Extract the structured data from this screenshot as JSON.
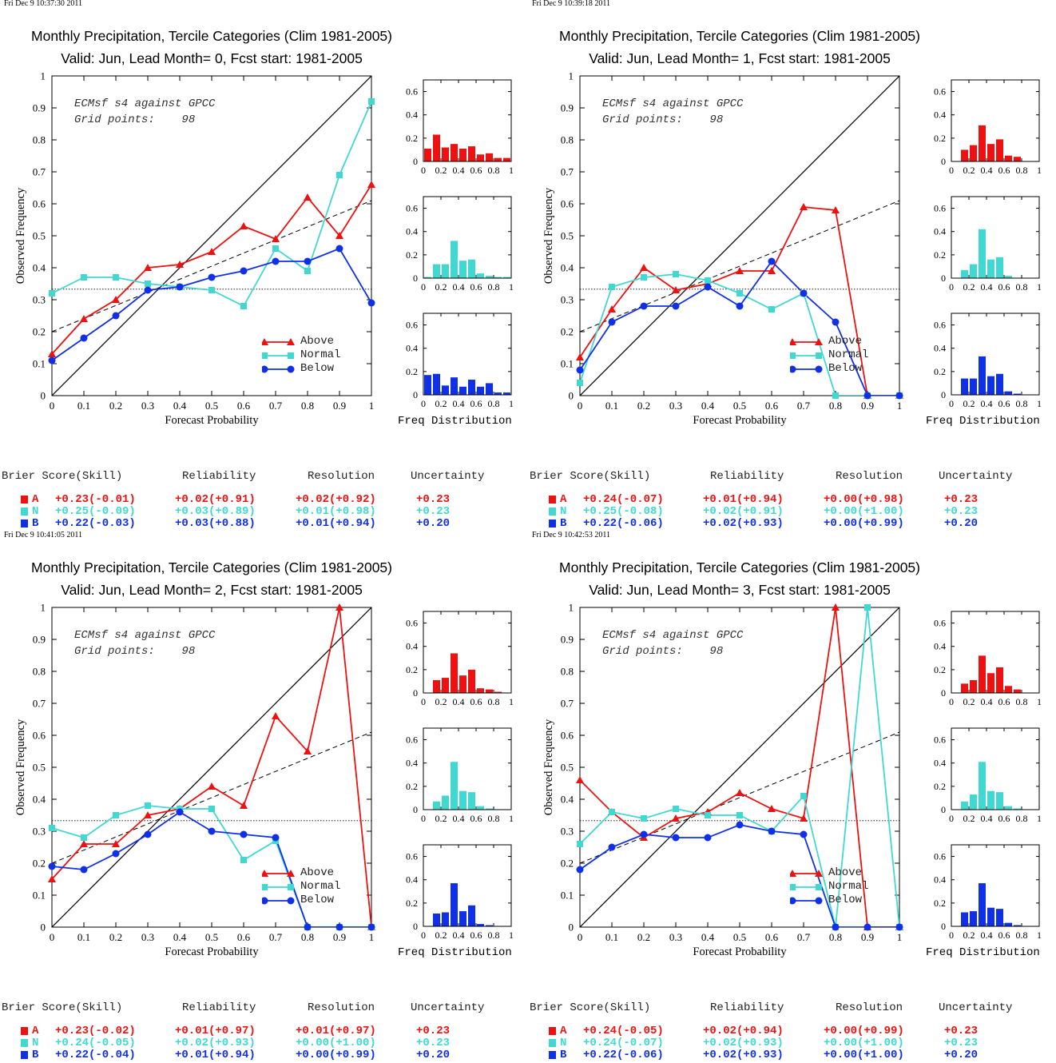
{
  "colors": {
    "above": "#ee1111",
    "normal": "#40d8d0",
    "below": "#1030e8"
  },
  "panels": [
    {
      "timestamp": "Fri Dec  9 10:37:30 2011",
      "title_line1": "Monthly Precipitation, Tercile Categories (Clim 1981-2005)",
      "title_line2": "Valid: Jun, Lead Month= 0, Fcst start: 1981-2005",
      "note_line1": "ECMsf s4 against GPCC",
      "note_line2": "Grid points:    98",
      "freq_label": "Freq Distribution",
      "score_headers": {
        "brier": "Brier Score(Skill)",
        "reliability": "Reliability",
        "resolution": "Resolution",
        "uncertainty": "Uncertainty"
      },
      "scores": [
        {
          "cat": "A",
          "brier": "+0.23(-0.01)",
          "reliability": "+0.02(+0.91)",
          "resolution": "+0.02(+0.92)",
          "uncertainty": "+0.23"
        },
        {
          "cat": "N",
          "brier": "+0.25(-0.09)",
          "reliability": "+0.03(+0.89)",
          "resolution": "+0.01(+0.98)",
          "uncertainty": "+0.23"
        },
        {
          "cat": "B",
          "brier": "+0.22(-0.03)",
          "reliability": "+0.03(+0.88)",
          "resolution": "+0.01(+0.94)",
          "uncertainty": "+0.20"
        }
      ]
    },
    {
      "timestamp": "Fri Dec  9 10:39:18 2011",
      "title_line1": "Monthly Precipitation, Tercile Categories (Clim 1981-2005)",
      "title_line2": "Valid: Jun, Lead Month= 1, Fcst start: 1981-2005",
      "note_line1": "ECMsf s4 against GPCC",
      "note_line2": "Grid points:    98",
      "freq_label": "Freq Distribution",
      "score_headers": {
        "brier": "Brier Score(Skill)",
        "reliability": "Reliability",
        "resolution": "Resolution",
        "uncertainty": "Uncertainty"
      },
      "scores": [
        {
          "cat": "A",
          "brier": "+0.24(-0.07)",
          "reliability": "+0.01(+0.94)",
          "resolution": "+0.00(+0.98)",
          "uncertainty": "+0.23"
        },
        {
          "cat": "N",
          "brier": "+0.25(-0.08)",
          "reliability": "+0.02(+0.91)",
          "resolution": "+0.00(+1.00)",
          "uncertainty": "+0.23"
        },
        {
          "cat": "B",
          "brier": "+0.22(-0.06)",
          "reliability": "+0.02(+0.93)",
          "resolution": "+0.00(+0.99)",
          "uncertainty": "+0.20"
        }
      ]
    },
    {
      "timestamp": "Fri Dec  9 10:41:05 2011",
      "title_line1": "Monthly Precipitation, Tercile Categories (Clim 1981-2005)",
      "title_line2": "Valid: Jun, Lead Month= 2, Fcst start: 1981-2005",
      "note_line1": "ECMsf s4 against GPCC",
      "note_line2": "Grid points:    98",
      "freq_label": "Freq Distribution",
      "score_headers": {
        "brier": "Brier Score(Skill)",
        "reliability": "Reliability",
        "resolution": "Resolution",
        "uncertainty": "Uncertainty"
      },
      "scores": [
        {
          "cat": "A",
          "brier": "+0.23(-0.02)",
          "reliability": "+0.01(+0.97)",
          "resolution": "+0.01(+0.97)",
          "uncertainty": "+0.23"
        },
        {
          "cat": "N",
          "brier": "+0.24(-0.05)",
          "reliability": "+0.02(+0.93)",
          "resolution": "+0.00(+1.00)",
          "uncertainty": "+0.23"
        },
        {
          "cat": "B",
          "brier": "+0.22(-0.04)",
          "reliability": "+0.01(+0.94)",
          "resolution": "+0.00(+0.99)",
          "uncertainty": "+0.20"
        }
      ]
    },
    {
      "timestamp": "Fri Dec  9 10:42:53 2011",
      "title_line1": "Monthly Precipitation, Tercile Categories (Clim 1981-2005)",
      "title_line2": "Valid: Jun, Lead Month= 3, Fcst start: 1981-2005",
      "note_line1": "ECMsf s4 against GPCC",
      "note_line2": "Grid points:    98",
      "freq_label": "Freq Distribution",
      "score_headers": {
        "brier": "Brier Score(Skill)",
        "reliability": "Reliability",
        "resolution": "Resolution",
        "uncertainty": "Uncertainty"
      },
      "scores": [
        {
          "cat": "A",
          "brier": "+0.24(-0.05)",
          "reliability": "+0.02(+0.94)",
          "resolution": "+0.00(+0.99)",
          "uncertainty": "+0.23"
        },
        {
          "cat": "N",
          "brier": "+0.24(-0.07)",
          "reliability": "+0.02(+0.93)",
          "resolution": "+0.00(+1.00)",
          "uncertainty": "+0.23"
        },
        {
          "cat": "B",
          "brier": "+0.22(-0.06)",
          "reliability": "+0.02(+0.93)",
          "resolution": "+0.00(+1.00)",
          "uncertainty": "+0.20"
        }
      ]
    }
  ],
  "chart_data": [
    {
      "type": "line",
      "xlabel": "Forecast Probability",
      "ylabel": "Observed Frequency",
      "xlim": [
        0,
        1
      ],
      "ylim": [
        0,
        1
      ],
      "xticks": [
        "0",
        "0.1",
        "0.2",
        "0.3",
        "0.4",
        "0.5",
        "0.6",
        "0.7",
        "0.8",
        "0.9",
        "1"
      ],
      "yticks": [
        "0",
        "0.1",
        "0.2",
        "0.3",
        "0.4",
        "0.5",
        "0.6",
        "0.7",
        "0.8",
        "0.9",
        "1"
      ],
      "legend": [
        "Above",
        "Normal",
        "Below"
      ],
      "x": [
        0,
        0.1,
        0.2,
        0.3,
        0.4,
        0.5,
        0.6,
        0.7,
        0.8,
        0.9,
        1
      ],
      "series": [
        {
          "name": "Above",
          "values": [
            0.13,
            0.24,
            0.3,
            0.4,
            0.41,
            0.45,
            0.53,
            0.49,
            0.62,
            0.5,
            0.66
          ]
        },
        {
          "name": "Normal",
          "values": [
            0.32,
            0.37,
            0.37,
            0.35,
            0.34,
            0.33,
            0.28,
            0.46,
            0.39,
            0.69,
            0.92
          ]
        },
        {
          "name": "Below",
          "values": [
            0.11,
            0.18,
            0.25,
            0.33,
            0.34,
            0.37,
            0.39,
            0.42,
            0.42,
            0.46,
            0.29
          ]
        }
      ],
      "climatology": 0.333,
      "no_skill_line": [
        [
          0,
          0.2
        ],
        [
          1,
          0.61
        ]
      ],
      "histograms": {
        "bins": [
          0,
          0.1,
          0.2,
          0.3,
          0.4,
          0.5,
          0.6,
          0.7,
          0.8,
          0.9
        ],
        "ylim": [
          0,
          0.7
        ],
        "yticks": [
          "0",
          "0.2",
          "0.4",
          "0.6"
        ],
        "xticks": [
          "0",
          "0.2",
          "0.4",
          "0.6",
          "0.8",
          "1"
        ],
        "Above": [
          0.11,
          0.23,
          0.12,
          0.15,
          0.11,
          0.13,
          0.06,
          0.07,
          0.03,
          0.03
        ],
        "Normal": [
          0.01,
          0.12,
          0.12,
          0.32,
          0.15,
          0.16,
          0.04,
          0.02,
          0.01,
          0.01
        ],
        "Below": [
          0.17,
          0.18,
          0.08,
          0.15,
          0.07,
          0.13,
          0.07,
          0.1,
          0.02,
          0.02
        ]
      }
    },
    {
      "type": "line",
      "xlabel": "Forecast Probability",
      "ylabel": "Observed Frequency",
      "xlim": [
        0,
        1
      ],
      "ylim": [
        0,
        1
      ],
      "xticks": [
        "0",
        "0.1",
        "0.2",
        "0.3",
        "0.4",
        "0.5",
        "0.6",
        "0.7",
        "0.8",
        "0.9",
        "1"
      ],
      "yticks": [
        "0",
        "0.1",
        "0.2",
        "0.3",
        "0.4",
        "0.5",
        "0.6",
        "0.7",
        "0.8",
        "0.9",
        "1"
      ],
      "legend": [
        "Above",
        "Normal",
        "Below"
      ],
      "x": [
        0,
        0.1,
        0.2,
        0.3,
        0.4,
        0.5,
        0.6,
        0.7,
        0.8,
        0.9,
        1
      ],
      "series": [
        {
          "name": "Above",
          "values": [
            0.12,
            0.27,
            0.4,
            0.33,
            0.35,
            0.39,
            0.39,
            0.59,
            0.58,
            0,
            0
          ]
        },
        {
          "name": "Normal",
          "values": [
            0.04,
            0.34,
            0.37,
            0.38,
            0.36,
            0.32,
            0.27,
            0.32,
            0,
            0,
            0
          ]
        },
        {
          "name": "Below",
          "values": [
            0.08,
            0.23,
            0.28,
            0.28,
            0.34,
            0.28,
            0.42,
            0.32,
            0.23,
            0,
            0
          ]
        }
      ],
      "climatology": 0.333,
      "no_skill_line": [
        [
          0,
          0.2
        ],
        [
          1,
          0.61
        ]
      ],
      "histograms": {
        "bins": [
          0,
          0.1,
          0.2,
          0.3,
          0.4,
          0.5,
          0.6,
          0.7,
          0.8,
          0.9
        ],
        "ylim": [
          0,
          0.7
        ],
        "yticks": [
          "0",
          "0.2",
          "0.4",
          "0.6"
        ],
        "xticks": [
          "0",
          "0.2",
          "0.4",
          "0.6",
          "0.8",
          "1"
        ],
        "Above": [
          0,
          0.1,
          0.14,
          0.31,
          0.15,
          0.19,
          0.05,
          0.04,
          0,
          0
        ],
        "Normal": [
          0,
          0.07,
          0.12,
          0.42,
          0.16,
          0.18,
          0.02,
          0,
          0,
          0
        ],
        "Below": [
          0,
          0.14,
          0.14,
          0.33,
          0.16,
          0.18,
          0.03,
          0.01,
          0,
          0
        ]
      }
    },
    {
      "type": "line",
      "xlabel": "Forecast Probability",
      "ylabel": "Observed Frequency",
      "xlim": [
        0,
        1
      ],
      "ylim": [
        0,
        1
      ],
      "xticks": [
        "0",
        "0.1",
        "0.2",
        "0.3",
        "0.4",
        "0.5",
        "0.6",
        "0.7",
        "0.8",
        "0.9",
        "1"
      ],
      "yticks": [
        "0",
        "0.1",
        "0.2",
        "0.3",
        "0.4",
        "0.5",
        "0.6",
        "0.7",
        "0.8",
        "0.9",
        "1"
      ],
      "legend": [
        "Above",
        "Normal",
        "Below"
      ],
      "x": [
        0,
        0.1,
        0.2,
        0.3,
        0.4,
        0.5,
        0.6,
        0.7,
        0.8,
        0.9,
        1
      ],
      "series": [
        {
          "name": "Above",
          "values": [
            0.15,
            0.26,
            0.26,
            0.35,
            0.37,
            0.44,
            0.38,
            0.66,
            0.55,
            1.0,
            0
          ]
        },
        {
          "name": "Normal",
          "values": [
            0.31,
            0.28,
            0.35,
            0.38,
            0.37,
            0.37,
            0.21,
            0.27,
            0,
            0,
            0
          ]
        },
        {
          "name": "Below",
          "values": [
            0.19,
            0.18,
            0.23,
            0.29,
            0.36,
            0.3,
            0.29,
            0.28,
            0,
            0,
            0
          ]
        }
      ],
      "climatology": 0.333,
      "no_skill_line": [
        [
          0,
          0.2
        ],
        [
          1,
          0.61
        ]
      ],
      "histograms": {
        "bins": [
          0,
          0.1,
          0.2,
          0.3,
          0.4,
          0.5,
          0.6,
          0.7,
          0.8,
          0.9
        ],
        "ylim": [
          0,
          0.7
        ],
        "yticks": [
          "0",
          "0.2",
          "0.4",
          "0.6"
        ],
        "xticks": [
          "0",
          "0.2",
          "0.4",
          "0.6",
          "0.8",
          "1"
        ],
        "Above": [
          0,
          0.11,
          0.13,
          0.34,
          0.15,
          0.2,
          0.04,
          0.03,
          0.01,
          0
        ],
        "Normal": [
          0,
          0.07,
          0.12,
          0.41,
          0.16,
          0.15,
          0.03,
          0.01,
          0,
          0
        ],
        "Below": [
          0,
          0.11,
          0.12,
          0.37,
          0.13,
          0.18,
          0.02,
          0.01,
          0,
          0
        ]
      }
    },
    {
      "type": "line",
      "xlabel": "Forecast Probability",
      "ylabel": "Observed Frequency",
      "xlim": [
        0,
        1
      ],
      "ylim": [
        0,
        1
      ],
      "xticks": [
        "0",
        "0.1",
        "0.2",
        "0.3",
        "0.4",
        "0.5",
        "0.6",
        "0.7",
        "0.8",
        "0.9",
        "1"
      ],
      "yticks": [
        "0",
        "0.1",
        "0.2",
        "0.3",
        "0.4",
        "0.5",
        "0.6",
        "0.7",
        "0.8",
        "0.9",
        "1"
      ],
      "legend": [
        "Above",
        "Normal",
        "Below"
      ],
      "x": [
        0,
        0.1,
        0.2,
        0.3,
        0.4,
        0.5,
        0.6,
        0.7,
        0.8,
        0.9,
        1
      ],
      "series": [
        {
          "name": "Above",
          "values": [
            0.46,
            0.36,
            0.28,
            0.34,
            0.36,
            0.42,
            0.37,
            0.34,
            1.0,
            0,
            0
          ]
        },
        {
          "name": "Normal",
          "values": [
            0.26,
            0.36,
            0.34,
            0.37,
            0.35,
            0.35,
            0.3,
            0.41,
            0,
            1.0,
            0
          ]
        },
        {
          "name": "Below",
          "values": [
            0.18,
            0.25,
            0.29,
            0.28,
            0.28,
            0.32,
            0.3,
            0.29,
            0,
            0,
            0
          ]
        }
      ],
      "climatology": 0.333,
      "no_skill_line": [
        [
          0,
          0.2
        ],
        [
          1,
          0.61
        ]
      ],
      "histograms": {
        "bins": [
          0,
          0.1,
          0.2,
          0.3,
          0.4,
          0.5,
          0.6,
          0.7,
          0.8,
          0.9
        ],
        "ylim": [
          0,
          0.7
        ],
        "yticks": [
          "0",
          "0.2",
          "0.4",
          "0.6"
        ],
        "xticks": [
          "0",
          "0.2",
          "0.4",
          "0.6",
          "0.8",
          "1"
        ],
        "Above": [
          0,
          0.08,
          0.11,
          0.32,
          0.17,
          0.22,
          0.06,
          0.03,
          0,
          0
        ],
        "Normal": [
          0,
          0.07,
          0.13,
          0.41,
          0.16,
          0.15,
          0.03,
          0.01,
          0,
          0
        ],
        "Below": [
          0,
          0.12,
          0.13,
          0.37,
          0.16,
          0.15,
          0.03,
          0.01,
          0,
          0
        ]
      }
    }
  ]
}
